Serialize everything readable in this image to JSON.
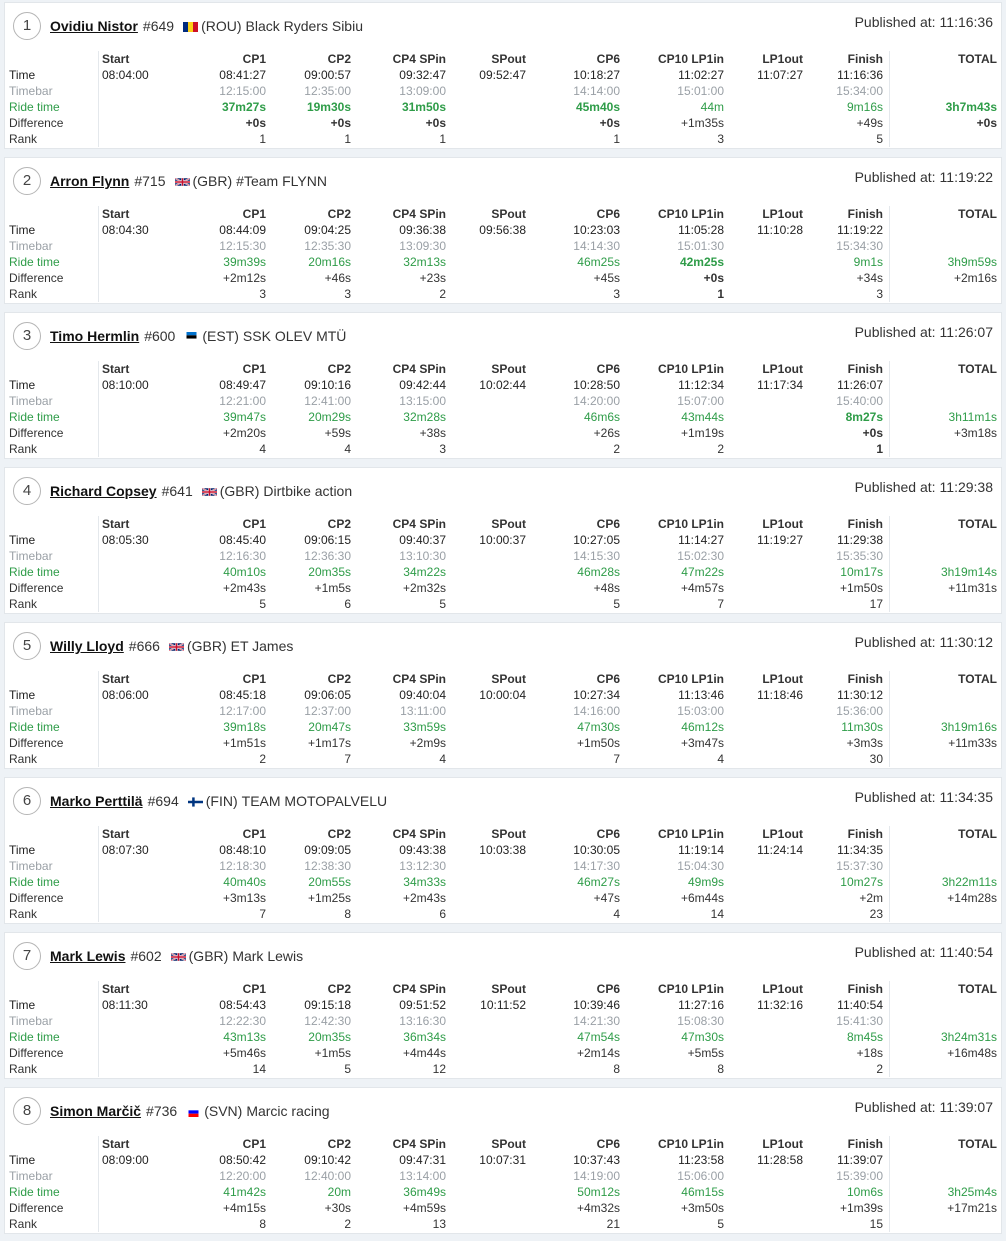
{
  "labels": {
    "published_prefix": "Published at:",
    "row_labels": [
      "Time",
      "Timebar",
      "Ride time",
      "Difference",
      "Rank"
    ],
    "columns": [
      "Start",
      "CP1",
      "CP2",
      "CP4 SPin",
      "SPout",
      "CP6",
      "CP10 LP1in",
      "LP1out",
      "Finish",
      "TOTAL"
    ]
  },
  "colors": {
    "ride_green": "#2e9c48",
    "timebar_grey": "#9aa0a6",
    "background": "#eef2f6"
  },
  "riders": [
    {
      "pos": "1",
      "name": "Ovidiu Nistor",
      "number": "#649",
      "flag": "flag-rou-icon",
      "country": "(ROU)",
      "team": "Black Ryders Sibiu",
      "published": "11:16:36",
      "time": [
        "08:04:00",
        "08:41:27",
        "09:00:57",
        "09:32:47",
        "09:52:47",
        "10:18:27",
        "11:02:27",
        "11:07:27",
        "11:16:36",
        ""
      ],
      "timebar": [
        "",
        "12:15:00",
        "12:35:00",
        "13:09:00",
        "",
        "14:14:00",
        "15:01:00",
        "",
        "15:34:00",
        ""
      ],
      "ride": [
        "",
        "37m27s",
        "19m30s",
        "31m50s",
        "",
        "45m40s",
        "44m",
        "",
        "9m16s",
        "3h7m43s"
      ],
      "diff": [
        "",
        "+0s",
        "+0s",
        "+0s",
        "",
        "+0s",
        "+1m35s",
        "",
        "+49s",
        "+0s"
      ],
      "rank": [
        "",
        "1",
        "1",
        "1",
        "",
        "1",
        "3",
        "",
        "5",
        ""
      ],
      "bold_ride": [
        1,
        2,
        3,
        5,
        9
      ],
      "bold_diff": [
        1,
        2,
        3,
        5,
        9
      ],
      "bold_rank": []
    },
    {
      "pos": "2",
      "name": "Arron Flynn",
      "number": "#715",
      "flag": "flag-gbr-icon",
      "country": "(GBR)",
      "team": "#Team FLYNN",
      "published": "11:19:22",
      "time": [
        "08:04:30",
        "08:44:09",
        "09:04:25",
        "09:36:38",
        "09:56:38",
        "10:23:03",
        "11:05:28",
        "11:10:28",
        "11:19:22",
        ""
      ],
      "timebar": [
        "",
        "12:15:30",
        "12:35:30",
        "13:09:30",
        "",
        "14:14:30",
        "15:01:30",
        "",
        "15:34:30",
        ""
      ],
      "ride": [
        "",
        "39m39s",
        "20m16s",
        "32m13s",
        "",
        "46m25s",
        "42m25s",
        "",
        "9m1s",
        "3h9m59s"
      ],
      "diff": [
        "",
        "+2m12s",
        "+46s",
        "+23s",
        "",
        "+45s",
        "+0s",
        "",
        "+34s",
        "+2m16s"
      ],
      "rank": [
        "",
        "3",
        "3",
        "2",
        "",
        "3",
        "1",
        "",
        "3",
        ""
      ],
      "bold_ride": [
        6
      ],
      "bold_diff": [
        6
      ],
      "bold_rank": [
        6
      ]
    },
    {
      "pos": "3",
      "name": "Timo Hermlin",
      "number": "#600",
      "flag": "flag-est-icon",
      "country": "(EST)",
      "team": "SSK OLEV MTÜ",
      "published": "11:26:07",
      "time": [
        "08:10:00",
        "08:49:47",
        "09:10:16",
        "09:42:44",
        "10:02:44",
        "10:28:50",
        "11:12:34",
        "11:17:34",
        "11:26:07",
        ""
      ],
      "timebar": [
        "",
        "12:21:00",
        "12:41:00",
        "13:15:00",
        "",
        "14:20:00",
        "15:07:00",
        "",
        "15:40:00",
        ""
      ],
      "ride": [
        "",
        "39m47s",
        "20m29s",
        "32m28s",
        "",
        "46m6s",
        "43m44s",
        "",
        "8m27s",
        "3h11m1s"
      ],
      "diff": [
        "",
        "+2m20s",
        "+59s",
        "+38s",
        "",
        "+26s",
        "+1m19s",
        "",
        "+0s",
        "+3m18s"
      ],
      "rank": [
        "",
        "4",
        "4",
        "3",
        "",
        "2",
        "2",
        "",
        "1",
        ""
      ],
      "bold_ride": [
        8
      ],
      "bold_diff": [
        8
      ],
      "bold_rank": [
        8
      ]
    },
    {
      "pos": "4",
      "name": "Richard Copsey",
      "number": "#641",
      "flag": "flag-gbr-icon",
      "country": "(GBR)",
      "team": "Dirtbike action",
      "published": "11:29:38",
      "time": [
        "08:05:30",
        "08:45:40",
        "09:06:15",
        "09:40:37",
        "10:00:37",
        "10:27:05",
        "11:14:27",
        "11:19:27",
        "11:29:38",
        ""
      ],
      "timebar": [
        "",
        "12:16:30",
        "12:36:30",
        "13:10:30",
        "",
        "14:15:30",
        "15:02:30",
        "",
        "15:35:30",
        ""
      ],
      "ride": [
        "",
        "40m10s",
        "20m35s",
        "34m22s",
        "",
        "46m28s",
        "47m22s",
        "",
        "10m17s",
        "3h19m14s"
      ],
      "diff": [
        "",
        "+2m43s",
        "+1m5s",
        "+2m32s",
        "",
        "+48s",
        "+4m57s",
        "",
        "+1m50s",
        "+11m31s"
      ],
      "rank": [
        "",
        "5",
        "6",
        "5",
        "",
        "5",
        "7",
        "",
        "17",
        ""
      ],
      "bold_ride": [],
      "bold_diff": [],
      "bold_rank": []
    },
    {
      "pos": "5",
      "name": "Willy Lloyd",
      "number": "#666",
      "flag": "flag-gbr-icon",
      "country": "(GBR)",
      "team": "ET James",
      "published": "11:30:12",
      "time": [
        "08:06:00",
        "08:45:18",
        "09:06:05",
        "09:40:04",
        "10:00:04",
        "10:27:34",
        "11:13:46",
        "11:18:46",
        "11:30:12",
        ""
      ],
      "timebar": [
        "",
        "12:17:00",
        "12:37:00",
        "13:11:00",
        "",
        "14:16:00",
        "15:03:00",
        "",
        "15:36:00",
        ""
      ],
      "ride": [
        "",
        "39m18s",
        "20m47s",
        "33m59s",
        "",
        "47m30s",
        "46m12s",
        "",
        "11m30s",
        "3h19m16s"
      ],
      "diff": [
        "",
        "+1m51s",
        "+1m17s",
        "+2m9s",
        "",
        "+1m50s",
        "+3m47s",
        "",
        "+3m3s",
        "+11m33s"
      ],
      "rank": [
        "",
        "2",
        "7",
        "4",
        "",
        "7",
        "4",
        "",
        "30",
        ""
      ],
      "bold_ride": [],
      "bold_diff": [],
      "bold_rank": []
    },
    {
      "pos": "6",
      "name": "Marko Perttilä",
      "number": "#694",
      "flag": "flag-fin-icon",
      "country": "(FIN)",
      "team": "TEAM MOTOPALVELU",
      "published": "11:34:35",
      "time": [
        "08:07:30",
        "08:48:10",
        "09:09:05",
        "09:43:38",
        "10:03:38",
        "10:30:05",
        "11:19:14",
        "11:24:14",
        "11:34:35",
        ""
      ],
      "timebar": [
        "",
        "12:18:30",
        "12:38:30",
        "13:12:30",
        "",
        "14:17:30",
        "15:04:30",
        "",
        "15:37:30",
        ""
      ],
      "ride": [
        "",
        "40m40s",
        "20m55s",
        "34m33s",
        "",
        "46m27s",
        "49m9s",
        "",
        "10m27s",
        "3h22m11s"
      ],
      "diff": [
        "",
        "+3m13s",
        "+1m25s",
        "+2m43s",
        "",
        "+47s",
        "+6m44s",
        "",
        "+2m",
        "+14m28s"
      ],
      "rank": [
        "",
        "7",
        "8",
        "6",
        "",
        "4",
        "14",
        "",
        "23",
        ""
      ],
      "bold_ride": [],
      "bold_diff": [],
      "bold_rank": []
    },
    {
      "pos": "7",
      "name": "Mark Lewis",
      "number": "#602",
      "flag": "flag-gbr-icon",
      "country": "(GBR)",
      "team": "Mark Lewis",
      "published": "11:40:54",
      "time": [
        "08:11:30",
        "08:54:43",
        "09:15:18",
        "09:51:52",
        "10:11:52",
        "10:39:46",
        "11:27:16",
        "11:32:16",
        "11:40:54",
        ""
      ],
      "timebar": [
        "",
        "12:22:30",
        "12:42:30",
        "13:16:30",
        "",
        "14:21:30",
        "15:08:30",
        "",
        "15:41:30",
        ""
      ],
      "ride": [
        "",
        "43m13s",
        "20m35s",
        "36m34s",
        "",
        "47m54s",
        "47m30s",
        "",
        "8m45s",
        "3h24m31s"
      ],
      "diff": [
        "",
        "+5m46s",
        "+1m5s",
        "+4m44s",
        "",
        "+2m14s",
        "+5m5s",
        "",
        "+18s",
        "+16m48s"
      ],
      "rank": [
        "",
        "14",
        "5",
        "12",
        "",
        "8",
        "8",
        "",
        "2",
        ""
      ],
      "bold_ride": [],
      "bold_diff": [],
      "bold_rank": []
    },
    {
      "pos": "8",
      "name": "Simon Marčič",
      "number": "#736",
      "flag": "flag-svn-icon",
      "country": "(SVN)",
      "team": "Marcic racing",
      "published": "11:39:07",
      "time": [
        "08:09:00",
        "08:50:42",
        "09:10:42",
        "09:47:31",
        "10:07:31",
        "10:37:43",
        "11:23:58",
        "11:28:58",
        "11:39:07",
        ""
      ],
      "timebar": [
        "",
        "12:20:00",
        "12:40:00",
        "13:14:00",
        "",
        "14:19:00",
        "15:06:00",
        "",
        "15:39:00",
        ""
      ],
      "ride": [
        "",
        "41m42s",
        "20m",
        "36m49s",
        "",
        "50m12s",
        "46m15s",
        "",
        "10m6s",
        "3h25m4s"
      ],
      "diff": [
        "",
        "+4m15s",
        "+30s",
        "+4m59s",
        "",
        "+4m32s",
        "+3m50s",
        "",
        "+1m39s",
        "+17m21s"
      ],
      "rank": [
        "",
        "8",
        "2",
        "13",
        "",
        "21",
        "5",
        "",
        "15",
        ""
      ],
      "bold_ride": [],
      "bold_diff": [],
      "bold_rank": []
    }
  ]
}
